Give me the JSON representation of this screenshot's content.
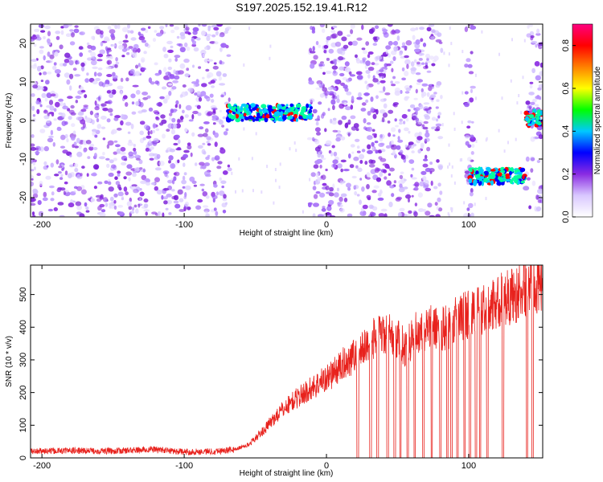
{
  "title": "S197.2025.152.19.41.R12",
  "chart_data": [
    {
      "type": "heatmap",
      "xlabel": "Height of straight line (km)",
      "ylabel": "Frequency (Hz)",
      "xlim": [
        -208,
        152
      ],
      "ylim": [
        -25,
        25
      ],
      "x_ticks": [
        -200,
        -100,
        0,
        100
      ],
      "y_ticks": [
        -20,
        -10,
        0,
        10,
        20
      ],
      "colorbar": {
        "label": "Normalized spectral amplitude",
        "range": [
          0,
          0.9
        ],
        "ticks": [
          0.0,
          0.2,
          0.4,
          0.6,
          0.8
        ],
        "colors": [
          "#ffffff",
          "#d9c8ff",
          "#8a2be2",
          "#0000ff",
          "#00c8ff",
          "#00ff00",
          "#ffff00",
          "#ff8000",
          "#ff0000",
          "#ff0080"
        ]
      },
      "gaps_x": [
        [
          -68,
          -12
        ],
        [
          81,
          98
        ],
        [
          103,
          140
        ]
      ],
      "strong_features": [
        {
          "x_range": [
            -70,
            -10
          ],
          "freq_hz": 2,
          "amplitude": 0.5
        },
        {
          "x_range": [
            100,
            140
          ],
          "freq_hz": -14.5,
          "amplitude": 0.6
        },
        {
          "x_range": [
            140,
            152
          ],
          "freq_hz": 0.5,
          "amplitude": 0.85
        }
      ]
    },
    {
      "type": "line",
      "xlabel": "Height of straight line (km)",
      "ylabel": "SNR (10 * v/v)",
      "xlim": [
        -208,
        152
      ],
      "ylim": [
        0,
        590
      ],
      "x_ticks": [
        -200,
        -100,
        0,
        100
      ],
      "y_ticks": [
        0,
        100,
        200,
        300,
        400,
        500
      ],
      "color": "#e8221d",
      "series": [
        {
          "x": [
            -208,
            -180,
            -150,
            -120,
            -100,
            -80,
            -65,
            -55,
            -45,
            -35,
            -25,
            -15,
            -5,
            5,
            15,
            25,
            35,
            45,
            55,
            65,
            75,
            85,
            95,
            105,
            115,
            125,
            135,
            145,
            152
          ],
          "values": [
            20,
            22,
            21,
            26,
            18,
            20,
            25,
            40,
            80,
            130,
            170,
            200,
            230,
            260,
            300,
            330,
            370,
            380,
            340,
            390,
            400,
            400,
            430,
            450,
            460,
            490,
            500,
            550,
            510
          ]
        }
      ],
      "dropouts_x": [
        22,
        31,
        36,
        43,
        48,
        52,
        57,
        62,
        68,
        74,
        80,
        85,
        88,
        92,
        97,
        101,
        105,
        108,
        113,
        124,
        141,
        145
      ]
    }
  ]
}
